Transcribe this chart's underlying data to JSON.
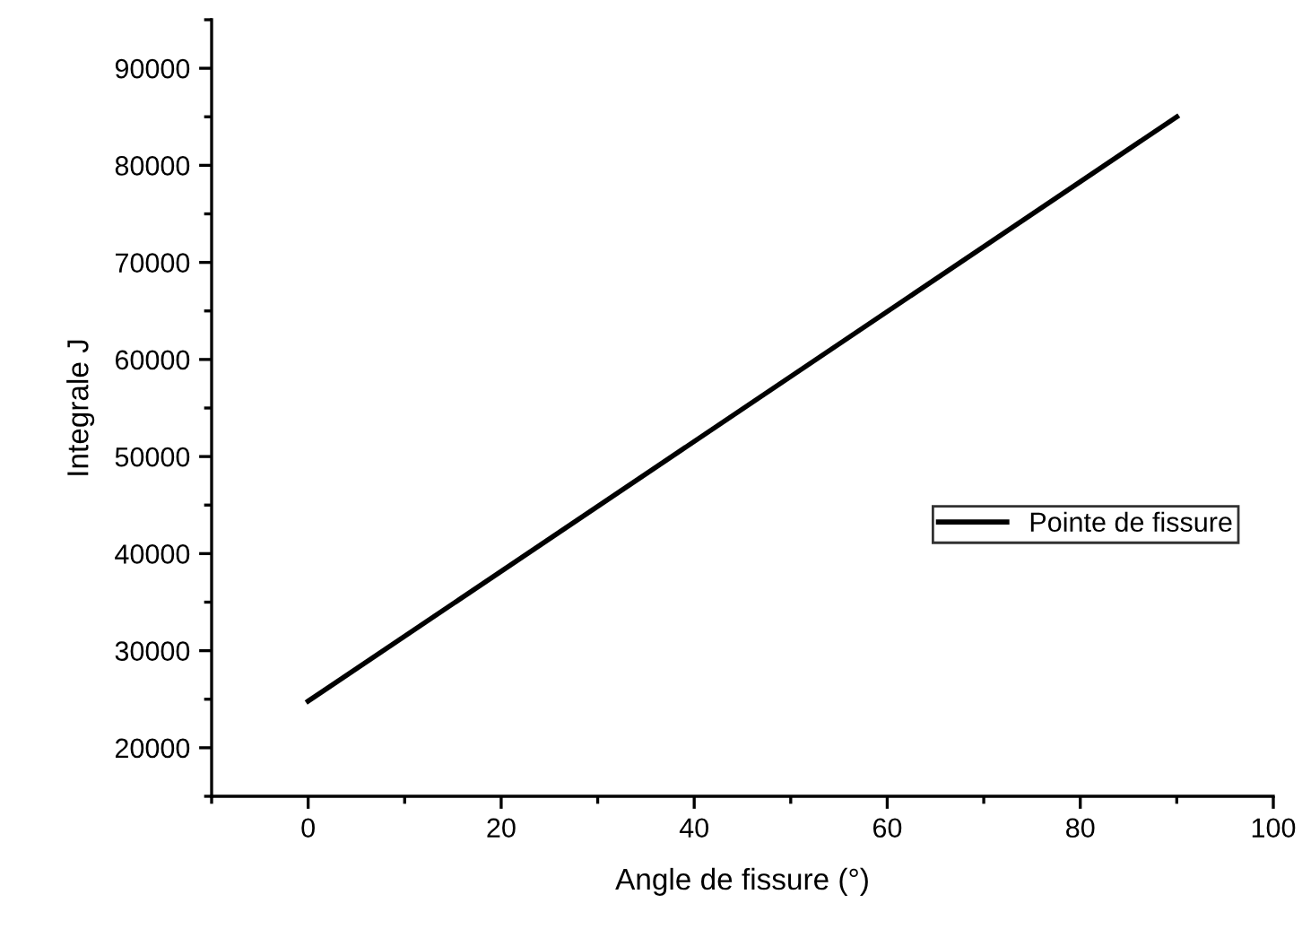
{
  "chart_data": {
    "type": "line",
    "xlabel": "Angle de fissure (°)",
    "ylabel": "Integrale J",
    "x": [
      0,
      90
    ],
    "series": [
      {
        "name": "Pointe de fissure",
        "color": "#000000",
        "values": [
          24800,
          85000
        ]
      }
    ],
    "xlim": [
      -10,
      100
    ],
    "xticks": [
      0,
      20,
      40,
      60,
      80,
      100
    ],
    "ylim": [
      15000,
      95000
    ],
    "yticks": [
      20000,
      30000,
      40000,
      50000,
      60000,
      70000,
      80000,
      90000
    ],
    "grid": false,
    "legend": "right",
    "marker": "none",
    "line_style": "solid"
  }
}
